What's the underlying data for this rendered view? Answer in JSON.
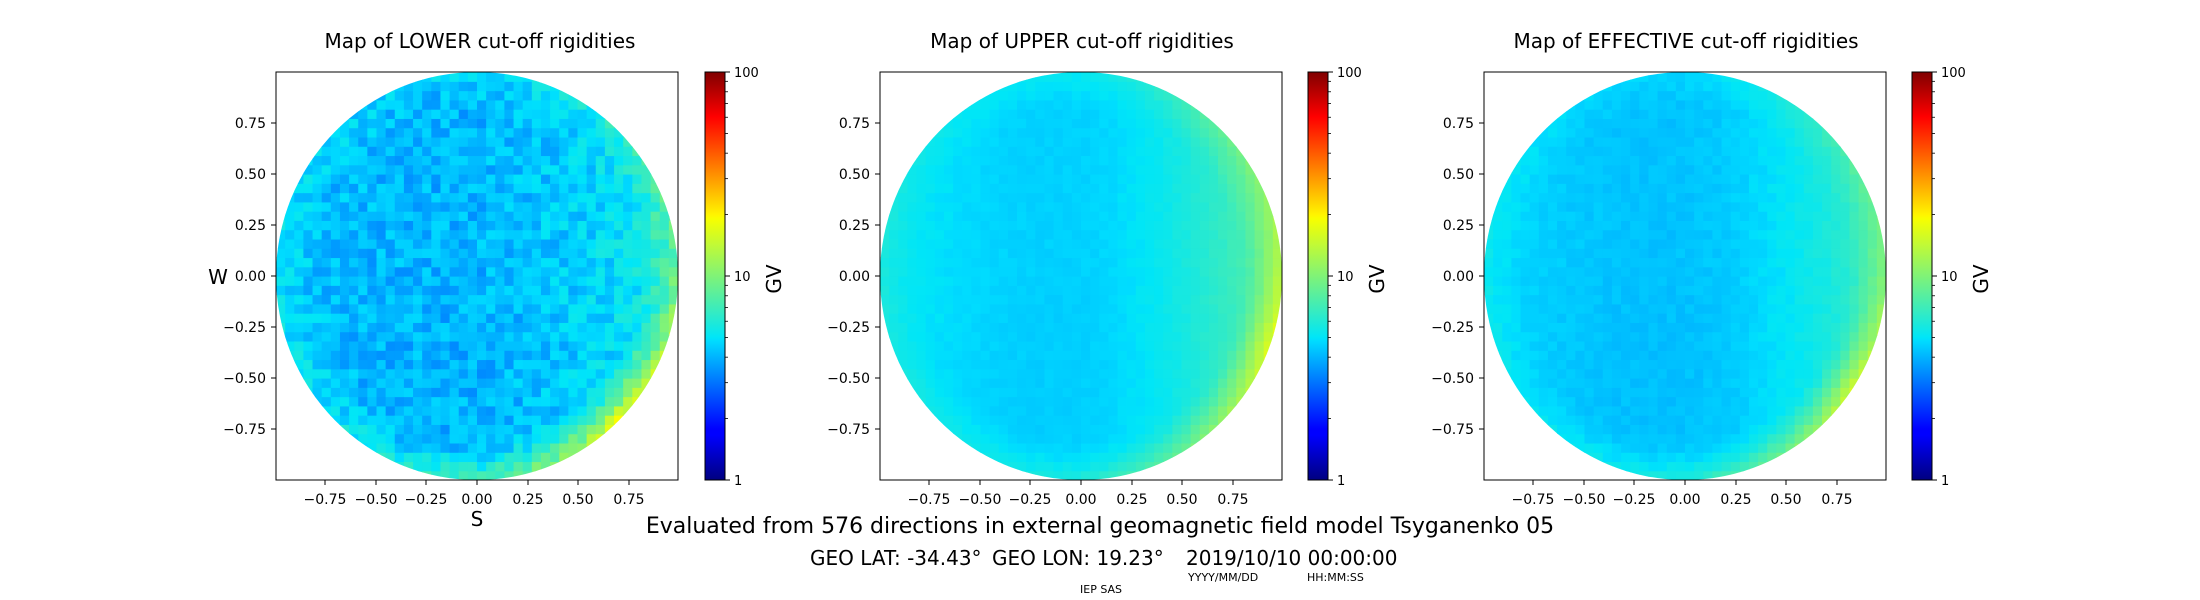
{
  "chart_data": [
    {
      "type": "heatmap",
      "title": "Map of LOWER cut-off rigidities",
      "xlabel": "S",
      "ylabel": "W",
      "xticks": [
        "−0.75",
        "−0.50",
        "−0.25",
        "0.00",
        "0.25",
        "0.50",
        "0.75"
      ],
      "yticks": [
        "0.75",
        "0.50",
        "0.25",
        "0.00",
        "−0.25",
        "−0.50",
        "−0.75"
      ],
      "xlim": [
        -1,
        1
      ],
      "ylim": [
        -1,
        1
      ],
      "colorbar": {
        "label": "GV",
        "scale": "log",
        "range": [
          1,
          100
        ],
        "ticks": [
          "100",
          "10",
          "1"
        ]
      },
      "field": {
        "base": 4.1,
        "west_gain": -0.9,
        "east_gain": 1.2,
        "rim_gain": 40,
        "rim_center": [
          0.72,
          -0.72
        ],
        "noise": 0.35
      }
    },
    {
      "type": "heatmap",
      "title": "Map of UPPER cut-off rigidities",
      "xlabel": "",
      "ylabel": "",
      "xticks": [
        "−0.75",
        "−0.50",
        "−0.25",
        "0.00",
        "0.25",
        "0.50",
        "0.75"
      ],
      "yticks": [
        "0.75",
        "0.50",
        "0.25",
        "0.00",
        "−0.25",
        "−0.50",
        "−0.75"
      ],
      "xlim": [
        -1,
        1
      ],
      "ylim": [
        -1,
        1
      ],
      "colorbar": {
        "label": "GV",
        "scale": "log",
        "range": [
          1,
          100
        ],
        "ticks": [
          "100",
          "10",
          "1"
        ]
      },
      "field": {
        "base": 4.6,
        "west_gain": -1.4,
        "east_gain": 3.2,
        "rim_gain": 30,
        "rim_center": [
          0.85,
          -0.3
        ],
        "noise": 0.05
      }
    },
    {
      "type": "heatmap",
      "title": "Map of EFFECTIVE cut-off rigidities",
      "xlabel": "",
      "ylabel": "",
      "xticks": [
        "−0.75",
        "−0.50",
        "−0.25",
        "0.00",
        "0.25",
        "0.50",
        "0.75"
      ],
      "yticks": [
        "0.75",
        "0.50",
        "0.25",
        "0.00",
        "−0.25",
        "−0.50",
        "−0.75"
      ],
      "xlim": [
        -1,
        1
      ],
      "ylim": [
        -1,
        1
      ],
      "colorbar": {
        "label": "GV",
        "scale": "log",
        "range": [
          1,
          100
        ],
        "ticks": [
          "100",
          "10",
          "1"
        ]
      },
      "field": {
        "base": 4.3,
        "west_gain": -1.2,
        "east_gain": 2.2,
        "rim_gain": 28,
        "rim_center": [
          0.8,
          -0.55
        ],
        "noise": 0.08
      }
    }
  ],
  "footer": {
    "evaluated": "Evaluated from 576 directions in external geomagnetic field model Tsyganenko 05",
    "geo_lat": "GEO LAT: -34.43°",
    "geo_lon": "GEO LON: 19.23°",
    "datetime": "2019/10/10 00:00:00",
    "date_format": "YYYY/MM/DD",
    "time_format": "HH:MM:SS",
    "institute": "IEP SAS"
  }
}
